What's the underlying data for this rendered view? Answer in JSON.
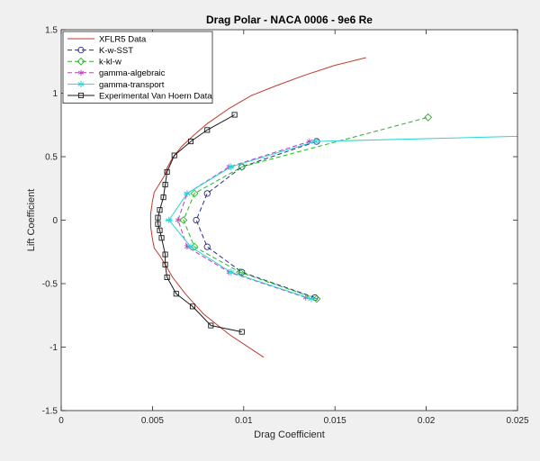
{
  "chart_data": {
    "type": "line",
    "title": "Drag Polar - NACA 0006 - 9e6 Re",
    "xlabel": "Drag Coefficient",
    "ylabel": "Lift Coefficient",
    "xlim": [
      0,
      0.025
    ],
    "ylim": [
      -1.5,
      1.5
    ],
    "xticks": [
      0,
      0.005,
      0.01,
      0.015,
      0.02,
      0.025
    ],
    "xtick_labels": [
      "0",
      "0.005",
      "0.01",
      "0.015",
      "0.02",
      "0.025"
    ],
    "yticks": [
      -1.5,
      -1,
      -0.5,
      0,
      0.5,
      1,
      1.5
    ],
    "ytick_labels": [
      "-1.5",
      "-1",
      "-0.5",
      "0",
      "0.5",
      "1",
      "1.5"
    ],
    "grid": false,
    "legend_location": "top-left",
    "series": [
      {
        "name": "XFLR5 Data",
        "color": "#c0392b",
        "line": "solid",
        "marker": "none",
        "points": [
          [
            0.0111,
            -1.08
          ],
          [
            0.0092,
            -0.9
          ],
          [
            0.0078,
            -0.74
          ],
          [
            0.0068,
            -0.58
          ],
          [
            0.0061,
            -0.45
          ],
          [
            0.0057,
            -0.35
          ],
          [
            0.0054,
            -0.28
          ],
          [
            0.0051,
            -0.22
          ],
          [
            0.005,
            -0.15
          ],
          [
            0.0049,
            -0.05
          ],
          [
            0.0049,
            0.05
          ],
          [
            0.005,
            0.15
          ],
          [
            0.0051,
            0.22
          ],
          [
            0.0054,
            0.29
          ],
          [
            0.0057,
            0.36
          ],
          [
            0.0058,
            0.41
          ],
          [
            0.0061,
            0.49
          ],
          [
            0.0066,
            0.58
          ],
          [
            0.0072,
            0.66
          ],
          [
            0.008,
            0.76
          ],
          [
            0.0092,
            0.88
          ],
          [
            0.0104,
            0.98
          ],
          [
            0.0118,
            1.06
          ],
          [
            0.0133,
            1.14
          ],
          [
            0.015,
            1.22
          ],
          [
            0.0167,
            1.28
          ]
        ]
      },
      {
        "name": "K-w-SST",
        "color": "#2b2b8c",
        "line": "dashed",
        "marker": "circle",
        "points": [
          [
            0.0139,
            -0.61
          ],
          [
            0.0099,
            -0.41
          ],
          [
            0.008,
            -0.21
          ],
          [
            0.0074,
            0.0
          ],
          [
            0.008,
            0.21
          ],
          [
            0.0099,
            0.42
          ],
          [
            0.014,
            0.62
          ]
        ]
      },
      {
        "name": "k-kl-w",
        "color": "#22b822",
        "line": "dashed",
        "marker": "diamond",
        "points": [
          [
            0.014,
            -0.62
          ],
          [
            0.0098,
            -0.41
          ],
          [
            0.0073,
            -0.21
          ],
          [
            0.0067,
            0.0
          ],
          [
            0.0073,
            0.21
          ],
          [
            0.0099,
            0.42
          ],
          [
            0.0201,
            0.81
          ]
        ]
      },
      {
        "name": "gamma-algebraic",
        "color": "#c23bc2",
        "line": "dashed",
        "marker": "asterisk",
        "points": [
          [
            0.0134,
            -0.61
          ],
          [
            0.0092,
            -0.41
          ],
          [
            0.0069,
            -0.21
          ],
          [
            0.0064,
            0.0
          ],
          [
            0.0069,
            0.21
          ],
          [
            0.0092,
            0.42
          ],
          [
            0.0136,
            0.62
          ]
        ]
      },
      {
        "name": "gamma-transport",
        "color": "#2dd4d4",
        "line": "solid",
        "marker": "star",
        "points": [
          [
            0.0137,
            -0.62
          ],
          [
            0.0093,
            -0.41
          ],
          [
            0.0071,
            -0.21
          ],
          [
            0.0059,
            0.0
          ],
          [
            0.0069,
            0.21
          ],
          [
            0.0093,
            0.42
          ],
          [
            0.0139,
            0.62
          ],
          [
            0.025,
            0.66
          ]
        ]
      },
      {
        "name": "Experimental Van Hoern Data",
        "color": "#1a1a1a",
        "line": "solid",
        "marker": "square",
        "points": [
          [
            0.0099,
            -0.88
          ],
          [
            0.0082,
            -0.83
          ],
          [
            0.0072,
            -0.68
          ],
          [
            0.0063,
            -0.58
          ],
          [
            0.0058,
            -0.45
          ],
          [
            0.0057,
            -0.35
          ],
          [
            0.0057,
            -0.27
          ],
          [
            0.0055,
            -0.14
          ],
          [
            0.0054,
            -0.08
          ],
          [
            0.0053,
            -0.03
          ],
          [
            0.0053,
            0.02
          ],
          [
            0.0054,
            0.08
          ],
          [
            0.0056,
            0.18
          ],
          [
            0.0057,
            0.28
          ],
          [
            0.0058,
            0.38
          ],
          [
            0.0062,
            0.51
          ],
          [
            0.0071,
            0.62
          ],
          [
            0.008,
            0.71
          ],
          [
            0.0095,
            0.83
          ]
        ]
      }
    ]
  }
}
